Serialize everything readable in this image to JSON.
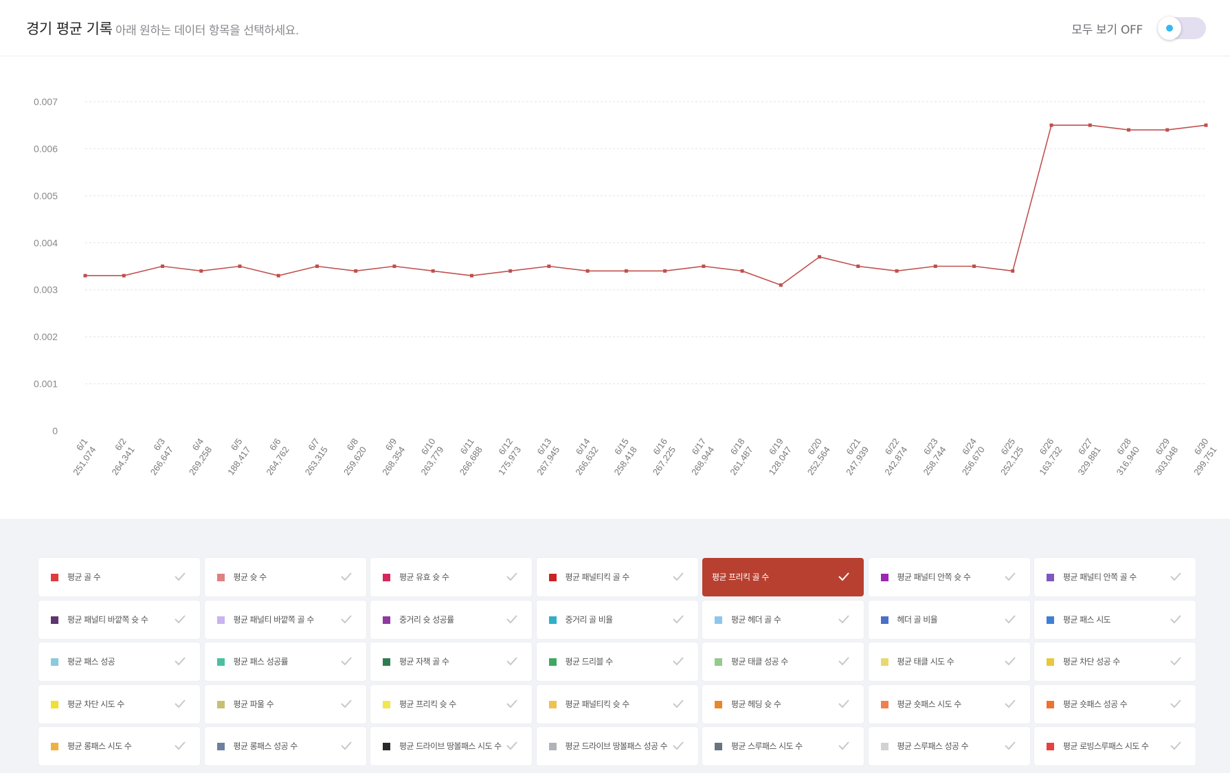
{
  "header": {
    "title": "경기 평균 기록",
    "subtitle": "아래 원하는 데이터 항목을 선택하세요.",
    "toggle_label": "모두 보기 OFF",
    "toggle_on": false,
    "toggle_color": "#35b9ef"
  },
  "chart_data": {
    "type": "line",
    "yticks": [
      "0",
      "0.001",
      "0.002",
      "0.003",
      "0.004",
      "0.005",
      "0.006",
      "0.007"
    ],
    "ylim": [
      0,
      0.007
    ],
    "grid": true,
    "categories": [
      {
        "date": "6/1",
        "sub": "251,074"
      },
      {
        "date": "6/2",
        "sub": "264,341"
      },
      {
        "date": "6/3",
        "sub": "266,647"
      },
      {
        "date": "6/4",
        "sub": "269,258"
      },
      {
        "date": "6/5",
        "sub": "188,417"
      },
      {
        "date": "6/6",
        "sub": "264,762"
      },
      {
        "date": "6/7",
        "sub": "263,315"
      },
      {
        "date": "6/8",
        "sub": "259,620"
      },
      {
        "date": "6/9",
        "sub": "268,354"
      },
      {
        "date": "6/10",
        "sub": "263,779"
      },
      {
        "date": "6/11",
        "sub": "266,688"
      },
      {
        "date": "6/12",
        "sub": "175,973"
      },
      {
        "date": "6/13",
        "sub": "267,945"
      },
      {
        "date": "6/14",
        "sub": "266,632"
      },
      {
        "date": "6/15",
        "sub": "258,418"
      },
      {
        "date": "6/16",
        "sub": "267,225"
      },
      {
        "date": "6/17",
        "sub": "268,944"
      },
      {
        "date": "6/18",
        "sub": "261,487"
      },
      {
        "date": "6/19",
        "sub": "128,047"
      },
      {
        "date": "6/20",
        "sub": "252,564"
      },
      {
        "date": "6/21",
        "sub": "247,939"
      },
      {
        "date": "6/22",
        "sub": "242,874"
      },
      {
        "date": "6/23",
        "sub": "258,744"
      },
      {
        "date": "6/24",
        "sub": "256,670"
      },
      {
        "date": "6/25",
        "sub": "252,125"
      },
      {
        "date": "6/26",
        "sub": "163,732"
      },
      {
        "date": "6/27",
        "sub": "329,881"
      },
      {
        "date": "6/28",
        "sub": "316,940"
      },
      {
        "date": "6/29",
        "sub": "303,048"
      },
      {
        "date": "6/30",
        "sub": "299,751"
      }
    ],
    "series": [
      {
        "color": "#c0504d",
        "values": [
          0.0033,
          0.0033,
          0.0035,
          0.0034,
          0.0035,
          0.0033,
          0.0035,
          0.0034,
          0.0035,
          0.0034,
          0.0033,
          0.0034,
          0.0035,
          0.0034,
          0.0034,
          0.0034,
          0.0035,
          0.0034,
          0.0031,
          0.0037,
          0.0035,
          0.0034,
          0.0035,
          0.0035,
          0.0034,
          0.0065,
          0.0065,
          0.0064,
          0.0064,
          0.0065
        ]
      }
    ]
  },
  "legend": {
    "items": [
      {
        "label": "평균 골 수",
        "color": "#e03a3e",
        "active": false
      },
      {
        "label": "평균 슛 수",
        "color": "#e08080",
        "active": false
      },
      {
        "label": "평균 유효 슛 수",
        "color": "#d6285c",
        "active": false
      },
      {
        "label": "평균 패널티킥 골 수",
        "color": "#cc2222",
        "active": false
      },
      {
        "label": "평균 프리킥 골 수",
        "color": "#b84030",
        "active": true
      },
      {
        "label": "평균 패널티 안쪽 슛 수",
        "color": "#9c27b0",
        "active": false
      },
      {
        "label": "평균 패널티 안쪽 골 수",
        "color": "#7e57c2",
        "active": false
      },
      {
        "label": "평균 패널티 바깥쪽 슛 수",
        "color": "#5e3570",
        "active": false
      },
      {
        "label": "평균 패널티 바깥쪽 골 수",
        "color": "#c9b3f0",
        "active": false
      },
      {
        "label": "중거리 슛 성공률",
        "color": "#8e3a9e",
        "active": false
      },
      {
        "label": "중거리 골 비율",
        "color": "#2fb0c8",
        "active": false
      },
      {
        "label": "평균 헤더 골 수",
        "color": "#8ec6ee",
        "active": false
      },
      {
        "label": "헤더 골 비율",
        "color": "#4a6fc8",
        "active": false
      },
      {
        "label": "평균 패스 시도",
        "color": "#3f7fd8",
        "active": false
      },
      {
        "label": "평균 패스 성공",
        "color": "#8cc8e0",
        "active": false
      },
      {
        "label": "평균 패스 성공률",
        "color": "#4cbfa0",
        "active": false
      },
      {
        "label": "평균 자책 골 수",
        "color": "#2e7d4f",
        "active": false
      },
      {
        "label": "평균 드리블 수",
        "color": "#3fa860",
        "active": false
      },
      {
        "label": "평균 태클 성공 수",
        "color": "#96c98e",
        "active": false
      },
      {
        "label": "평균 태클 시도 수",
        "color": "#e8d870",
        "active": false
      },
      {
        "label": "평균 차단 성공 수",
        "color": "#e8c840",
        "active": false
      },
      {
        "label": "평균 차단 시도 수",
        "color": "#f0e030",
        "active": false
      },
      {
        "label": "평균 파울 수",
        "color": "#c8c070",
        "active": false
      },
      {
        "label": "평균 프리킥 슛 수",
        "color": "#f0e650",
        "active": false
      },
      {
        "label": "평균 패널티킥 슛 수",
        "color": "#f0c050",
        "active": false
      },
      {
        "label": "평균 헤딩 슛 수",
        "color": "#e8882a",
        "active": false
      },
      {
        "label": "평균 숏패스 시도 수",
        "color": "#f08050",
        "active": false
      },
      {
        "label": "평균 숏패스 성공 수",
        "color": "#f07030",
        "active": false
      },
      {
        "label": "평균 롱패스 시도 수",
        "color": "#f0b040",
        "active": false
      },
      {
        "label": "평균 롱패스 성공 수",
        "color": "#6e80a0",
        "active": false
      },
      {
        "label": "평균 드라이브 땅볼패스 시도 수",
        "color": "#2a2a2a",
        "active": false
      },
      {
        "label": "평균 드라이브 땅볼패스 성공 수",
        "color": "#b0b4b8",
        "active": false
      },
      {
        "label": "평균 스루패스 시도 수",
        "color": "#6a7480",
        "active": false
      },
      {
        "label": "평균 스루패스 성공 수",
        "color": "#d0d2d4",
        "active": false
      },
      {
        "label": "평균 로빙스루패스 시도 수",
        "color": "#e84040",
        "active": false
      }
    ]
  }
}
